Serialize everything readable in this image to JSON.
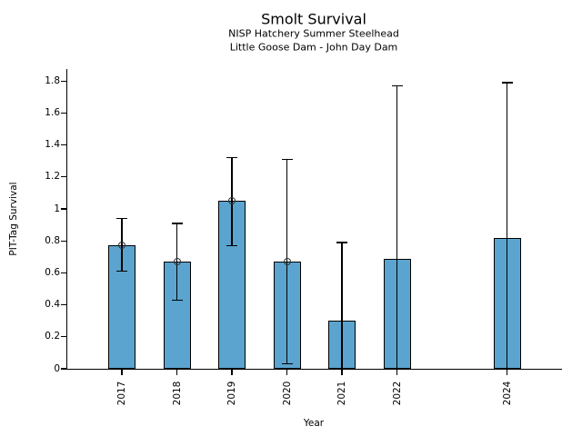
{
  "chart_data": {
    "type": "bar",
    "title": "Smolt Survival",
    "subtitle_line1": "NISP Hatchery Summer Steelhead",
    "subtitle_line2": "Little Goose Dam - John Day Dam",
    "xlabel": "Year",
    "ylabel": "PIT-Tag Survival",
    "categories": [
      "2017",
      "2018",
      "2019",
      "2020",
      "2021",
      "2022",
      "2024"
    ],
    "values": [
      0.77,
      0.67,
      1.05,
      0.67,
      0.3,
      0.69,
      0.82
    ],
    "error_low": [
      0.61,
      0.43,
      0.77,
      0.03,
      0.0,
      0.0,
      0.0
    ],
    "error_high": [
      0.94,
      0.91,
      1.32,
      1.31,
      0.79,
      1.77,
      1.79
    ],
    "point_markers": [
      true,
      true,
      true,
      true,
      false,
      false,
      false
    ],
    "x_slot_years": [
      2017,
      2018,
      2019,
      2020,
      2021,
      2022,
      2023,
      2024
    ],
    "ylim": [
      0,
      1.875
    ],
    "yticks": [
      0,
      0.2,
      0.4,
      0.6,
      0.8,
      1,
      1.2,
      1.4,
      1.6,
      1.8
    ],
    "ytick_labels": [
      "0",
      "0.2",
      "0.4",
      "0.6",
      "0.8",
      "1",
      "1.2",
      "1.4",
      "1.6",
      "1.8"
    ],
    "grid": false,
    "legend": null,
    "bar_color": "#5BA4CF",
    "bar_edge_color": "#000000",
    "error_color": "#000000",
    "marker_edge_color": "#333333"
  }
}
